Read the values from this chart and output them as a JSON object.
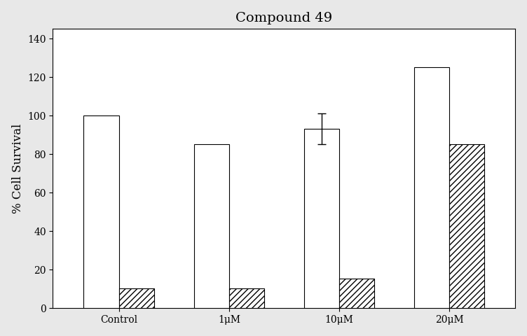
{
  "title": "Compound 49",
  "ylabel": "% Cell Survival",
  "xlabel": "",
  "categories": [
    "Control",
    "1μM",
    "10μM",
    "20μM"
  ],
  "bar1_values": [
    100,
    85,
    93,
    125
  ],
  "bar2_values": [
    10,
    10,
    15,
    85
  ],
  "bar1_errors": [
    0,
    0,
    8,
    0
  ],
  "bar2_errors": [
    0,
    0,
    0,
    0
  ],
  "ylim": [
    0,
    145
  ],
  "yticks": [
    0,
    20,
    40,
    60,
    80,
    100,
    120,
    140
  ],
  "bar_width": 0.32,
  "background_color": "#e8e8e8",
  "face_color": "#ffffff",
  "title_fontsize": 14,
  "axis_label_fontsize": 12,
  "tick_fontsize": 10
}
